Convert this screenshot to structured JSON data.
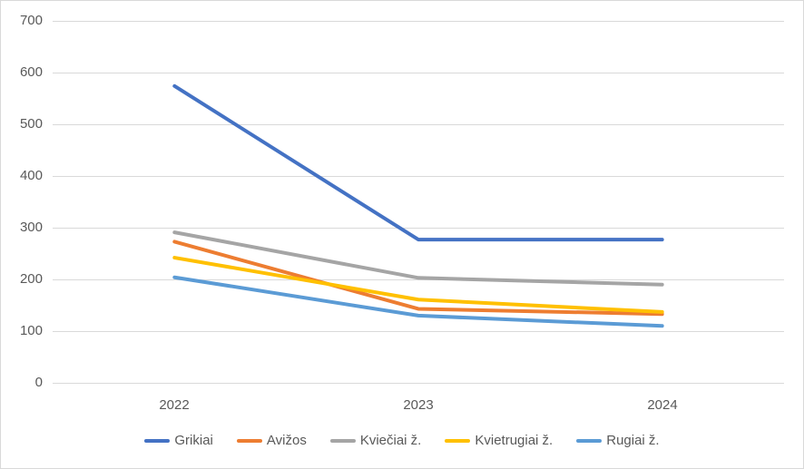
{
  "chart_data": {
    "type": "line",
    "title": "",
    "xlabel": "",
    "ylabel": "",
    "x": [
      "2022",
      "2023",
      "2024"
    ],
    "series": [
      {
        "name": "Grikiai",
        "color": "#4472C4",
        "values": [
          574,
          277,
          277
        ]
      },
      {
        "name": "Avižos",
        "color": "#ED7D31",
        "values": [
          273,
          143,
          133
        ]
      },
      {
        "name": "Kviečiai ž.",
        "color": "#A5A5A5",
        "values": [
          291,
          203,
          190
        ]
      },
      {
        "name": "Kvietrugiai ž.",
        "color": "#FFC000",
        "values": [
          242,
          161,
          137
        ]
      },
      {
        "name": "Rugiai ž.",
        "color": "#5B9BD5",
        "values": [
          204,
          130,
          110
        ]
      }
    ],
    "ylim": [
      0,
      700
    ],
    "yticks": [
      0,
      100,
      200,
      300,
      400,
      500,
      600,
      700
    ],
    "grid": true,
    "legend_position": "bottom"
  },
  "styles": {
    "grid_color": "#d9d9d9",
    "axis_text_color": "#595959",
    "legend_text_color": "#595959",
    "background": "#ffffff",
    "border_color": "#d9d9d9",
    "line_width": 4
  }
}
